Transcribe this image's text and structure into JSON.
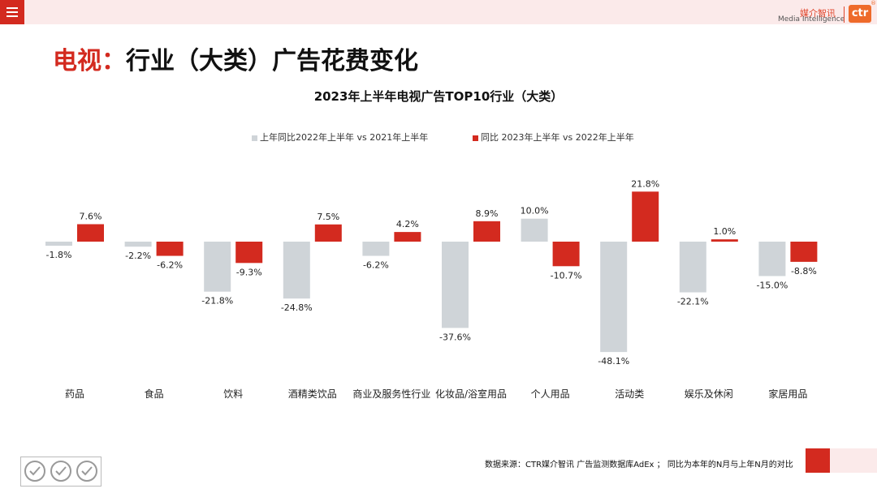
{
  "header": {
    "logo_cn": "媒介智讯",
    "logo_en": "Media Intelligence",
    "logo_mark": "ctr"
  },
  "title": {
    "highlight": "电视：",
    "main": "行业（大类）广告花费变化"
  },
  "footer": {
    "source": "数据来源：CTR媒介智讯 广告监测数据库AdEx ；  同比为本年的N月与上年N月的对比"
  },
  "colors": {
    "accent": "#d32a1f",
    "gray_series": "#cfd4d8",
    "red_series": "#d32a1f",
    "band": "#fbeaea"
  },
  "chart_data": {
    "type": "bar",
    "title": "2023年上半年电视广告TOP10行业（大类）",
    "legend_position": "top",
    "grid": false,
    "categories": [
      "药品",
      "食品",
      "饮料",
      "酒精类饮品",
      "商业及服务性行业",
      "化妆品/浴室用品",
      "个人用品",
      "活动类",
      "娱乐及休闲",
      "家居用品"
    ],
    "series": [
      {
        "name": "上年同比2022年上半年  vs 2021年上半年",
        "values": [
          -1.8,
          -2.2,
          -21.8,
          -24.8,
          -6.2,
          -37.6,
          10.0,
          -48.1,
          -22.1,
          -15.0
        ]
      },
      {
        "name": "同比 2023年上半年  vs 2022年上半年",
        "values": [
          7.6,
          -6.2,
          -9.3,
          7.5,
          4.2,
          8.9,
          -10.7,
          21.8,
          1.0,
          -8.8
        ]
      }
    ],
    "unit": "%",
    "ylim": [
      -50,
      25
    ]
  }
}
